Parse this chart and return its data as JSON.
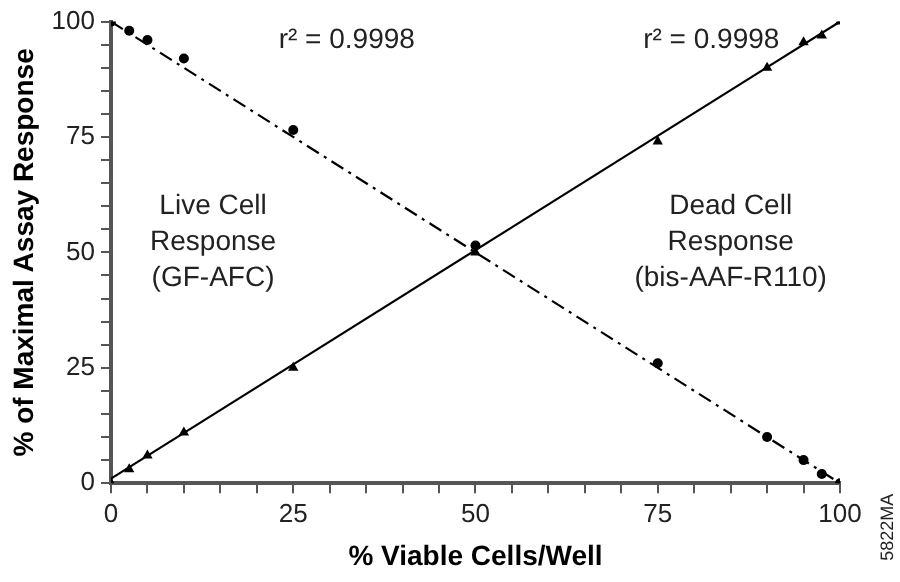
{
  "chart_data": {
    "type": "scatter",
    "xlabel": "% Viable Cells/Well",
    "ylabel": "% of Maximal Assay Response",
    "xlim": [
      0,
      100
    ],
    "ylim": [
      0,
      100
    ],
    "xticks": [
      0,
      {
        "value": 5,
        "label": null
      },
      {
        "value": 10,
        "label": null
      },
      {
        "value": 15,
        "label": null
      },
      {
        "value": 20,
        "label": null
      },
      25,
      {
        "value": 30,
        "label": null
      },
      {
        "value": 35,
        "label": null
      },
      {
        "value": 40,
        "label": null
      },
      {
        "value": 45,
        "label": null
      },
      50,
      {
        "value": 55,
        "label": null
      },
      {
        "value": 60,
        "label": null
      },
      {
        "value": 65,
        "label": null
      },
      {
        "value": 70,
        "label": null
      },
      75,
      {
        "value": 80,
        "label": null
      },
      {
        "value": 85,
        "label": null
      },
      {
        "value": 90,
        "label": null
      },
      {
        "value": 95,
        "label": null
      },
      100
    ],
    "yticks": [
      0,
      {
        "value": 5,
        "label": null
      },
      {
        "value": 10,
        "label": null
      },
      {
        "value": 15,
        "label": null
      },
      {
        "value": 20,
        "label": null
      },
      25,
      {
        "value": 30,
        "label": null
      },
      {
        "value": 35,
        "label": null
      },
      {
        "value": 40,
        "label": null
      },
      {
        "value": 45,
        "label": null
      },
      50,
      {
        "value": 55,
        "label": null
      },
      {
        "value": 60,
        "label": null
      },
      {
        "value": 65,
        "label": null
      },
      {
        "value": 70,
        "label": null
      },
      75,
      {
        "value": 80,
        "label": null
      },
      {
        "value": 85,
        "label": null
      },
      {
        "value": 90,
        "label": null
      },
      {
        "value": 95,
        "label": null
      },
      100
    ],
    "series": [
      {
        "type": "scatter",
        "marker": "circle",
        "color": "#000000",
        "x": [
          0,
          2.5,
          5,
          10,
          25,
          50,
          75,
          90,
          95,
          97.5,
          100
        ],
        "values": [
          100,
          98,
          96,
          92,
          76.5,
          51.5,
          26,
          10,
          5,
          2,
          0
        ]
      },
      {
        "type": "scatter",
        "marker": "triangle",
        "color": "#000000",
        "x": [
          0,
          2.5,
          5,
          10,
          25,
          50,
          75,
          90,
          95,
          97.5,
          100
        ],
        "values": [
          0,
          3,
          6,
          11,
          25,
          50,
          74,
          90,
          95.5,
          97,
          100
        ]
      },
      {
        "type": "line",
        "line_style": "dashed",
        "color": "#000000",
        "x": [
          0,
          100
        ],
        "values": [
          100,
          0
        ]
      },
      {
        "type": "line",
        "line_style": "solid",
        "color": "#000000",
        "x": [
          0,
          100
        ],
        "values": [
          1,
          100
        ]
      }
    ],
    "annotations": [
      "r² = 0.9998",
      "r² = 0.9998",
      "Live Cell\nResponse\n(GF-AFC)",
      "Dead Cell\nResponse\n(bis-AAF-R110)",
      "5822MA"
    ],
    "grid": false,
    "legend": false
  }
}
